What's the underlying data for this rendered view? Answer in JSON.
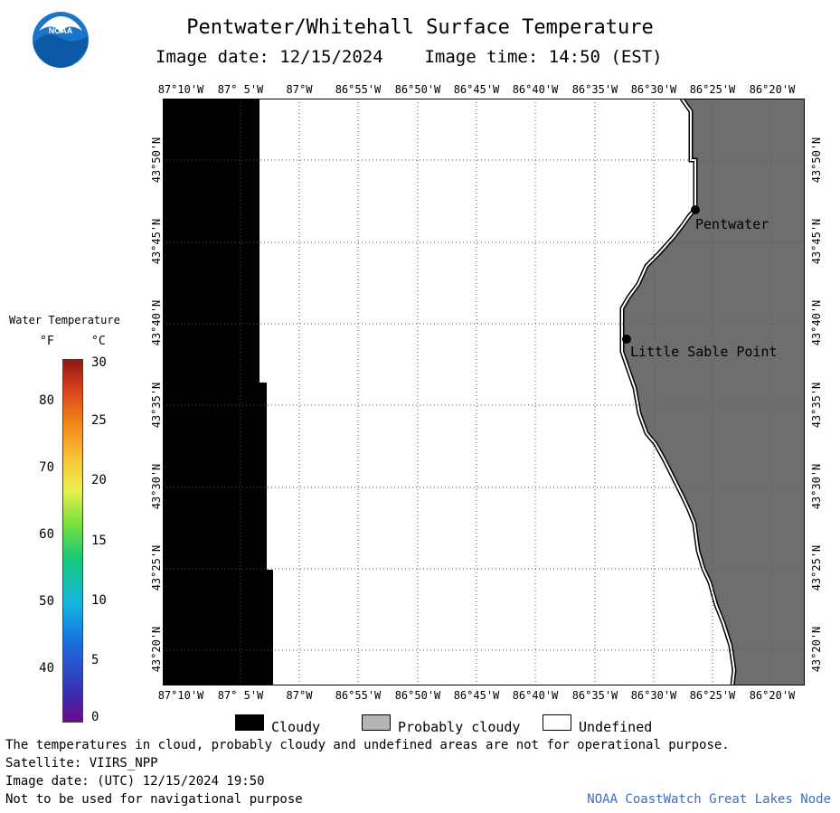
{
  "title": "Pentwater/Whitehall Surface Temperature",
  "image_date_label": "Image date:",
  "image_date": "12/15/2024",
  "image_time_label": "Image time:",
  "image_time": "14:50 (EST)",
  "logo_text": "NOAA",
  "longitude_labels": [
    "87°10'W",
    "87° 5'W",
    "87°W",
    "86°55'W",
    "86°50'W",
    "86°45'W",
    "86°40'W",
    "86°35'W",
    "86°30'W",
    "86°25'W",
    "86°20'W"
  ],
  "latitude_labels": [
    "43°50'N",
    "43°45'N",
    "43°40'N",
    "43°35'N",
    "43°30'N",
    "43°25'N",
    "43°20'N"
  ],
  "places": [
    {
      "name": "Pentwater"
    },
    {
      "name": "Little Sable Point"
    }
  ],
  "legend": {
    "title": "Water Temperature",
    "unit_f": "°F",
    "unit_c": "°C",
    "ticks_f": [
      "80",
      "70",
      "60",
      "50",
      "40"
    ],
    "ticks_c": [
      "30",
      "25",
      "20",
      "15",
      "10",
      "5",
      "0"
    ],
    "colors": {
      "cloud": "#000000",
      "probably_cloudy": "#b4b4b4",
      "undefined": "#ffffff",
      "land": "#6e6e6e"
    }
  },
  "key": {
    "cloudy": "Cloudy",
    "probably_cloudy": "Probably cloudy",
    "undefined": "Undefined"
  },
  "footer": {
    "note": "The temperatures in cloud, probably cloudy and undefined areas are not for operational purpose.",
    "satellite": "Satellite: VIIRS_NPP",
    "utc_date": "Image date: (UTC) 12/15/2024  19:50",
    "nav_warning": "Not to be used for navigational purpose",
    "credit": "NOAA CoastWatch Great Lakes Node"
  }
}
